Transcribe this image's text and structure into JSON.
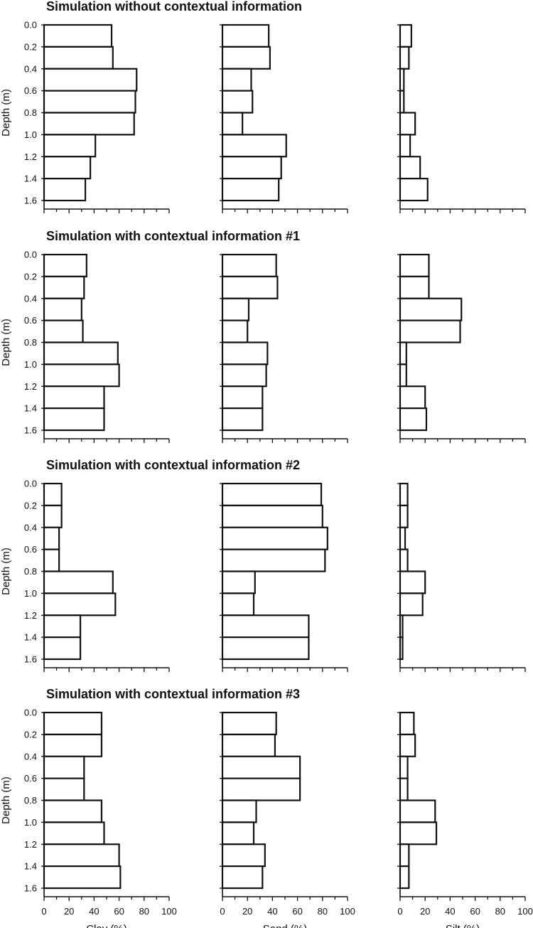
{
  "chart_data": {
    "type": "bar",
    "orientation": "horizontal",
    "y_axis": {
      "label": "Depth (m)",
      "tick_labels": [
        "0.0",
        "0.2",
        "0.4",
        "0.6",
        "0.8",
        "1.0",
        "1.2",
        "1.4",
        "1.6"
      ],
      "range": [
        0,
        1.6
      ],
      "inverted": true
    },
    "x_axis": {
      "range": [
        0,
        100
      ],
      "tick_labels": [
        "0",
        "20",
        "40",
        "60",
        "80",
        "100"
      ],
      "labels": [
        "Clay (%)",
        "Sand (%)",
        "Silt (%)"
      ]
    },
    "depth_intervals": [
      [
        0.0,
        0.2
      ],
      [
        0.2,
        0.4
      ],
      [
        0.4,
        0.6
      ],
      [
        0.6,
        0.8
      ],
      [
        0.8,
        1.0
      ],
      [
        1.0,
        1.2
      ],
      [
        1.2,
        1.4
      ],
      [
        1.4,
        1.6
      ]
    ],
    "grid": false,
    "panels": [
      {
        "title": "Simulation without contextual information",
        "series": [
          {
            "name": "Clay (%)",
            "values": [
              54,
              55,
              74,
              73,
              72,
              41,
              37,
              33
            ]
          },
          {
            "name": "Sand (%)",
            "values": [
              37,
              38,
              23,
              24,
              16,
              51,
              47,
              45
            ]
          },
          {
            "name": "Silt (%)",
            "values": [
              9,
              7,
              3,
              3,
              12,
              8,
              16,
              22
            ]
          }
        ]
      },
      {
        "title": "Simulation with contextual information #1",
        "series": [
          {
            "name": "Clay (%)",
            "values": [
              34,
              32,
              30,
              31,
              59,
              60,
              48,
              48
            ]
          },
          {
            "name": "Sand (%)",
            "values": [
              43,
              44,
              21,
              20,
              36,
              35,
              32,
              32
            ]
          },
          {
            "name": "Silt (%)",
            "values": [
              23,
              23,
              49,
              48,
              5,
              5,
              20,
              21
            ]
          }
        ]
      },
      {
        "title": "Simulation with contextual information #2",
        "series": [
          {
            "name": "Clay (%)",
            "values": [
              14,
              14,
              12,
              12,
              55,
              57,
              29,
              29
            ]
          },
          {
            "name": "Sand (%)",
            "values": [
              79,
              80,
              84,
              82,
              26,
              25,
              69,
              69
            ]
          },
          {
            "name": "Silt (%)",
            "values": [
              6,
              6,
              4,
              6,
              20,
              18,
              2,
              2
            ]
          }
        ]
      },
      {
        "title": "Simulation with contextual information #3",
        "series": [
          {
            "name": "Clay (%)",
            "values": [
              46,
              46,
              32,
              32,
              46,
              48,
              60,
              61
            ]
          },
          {
            "name": "Sand (%)",
            "values": [
              43,
              42,
              62,
              62,
              27,
              25,
              34,
              32
            ]
          },
          {
            "name": "Silt (%)",
            "values": [
              11,
              12,
              6,
              6,
              28,
              29,
              7,
              7
            ]
          }
        ]
      }
    ]
  }
}
